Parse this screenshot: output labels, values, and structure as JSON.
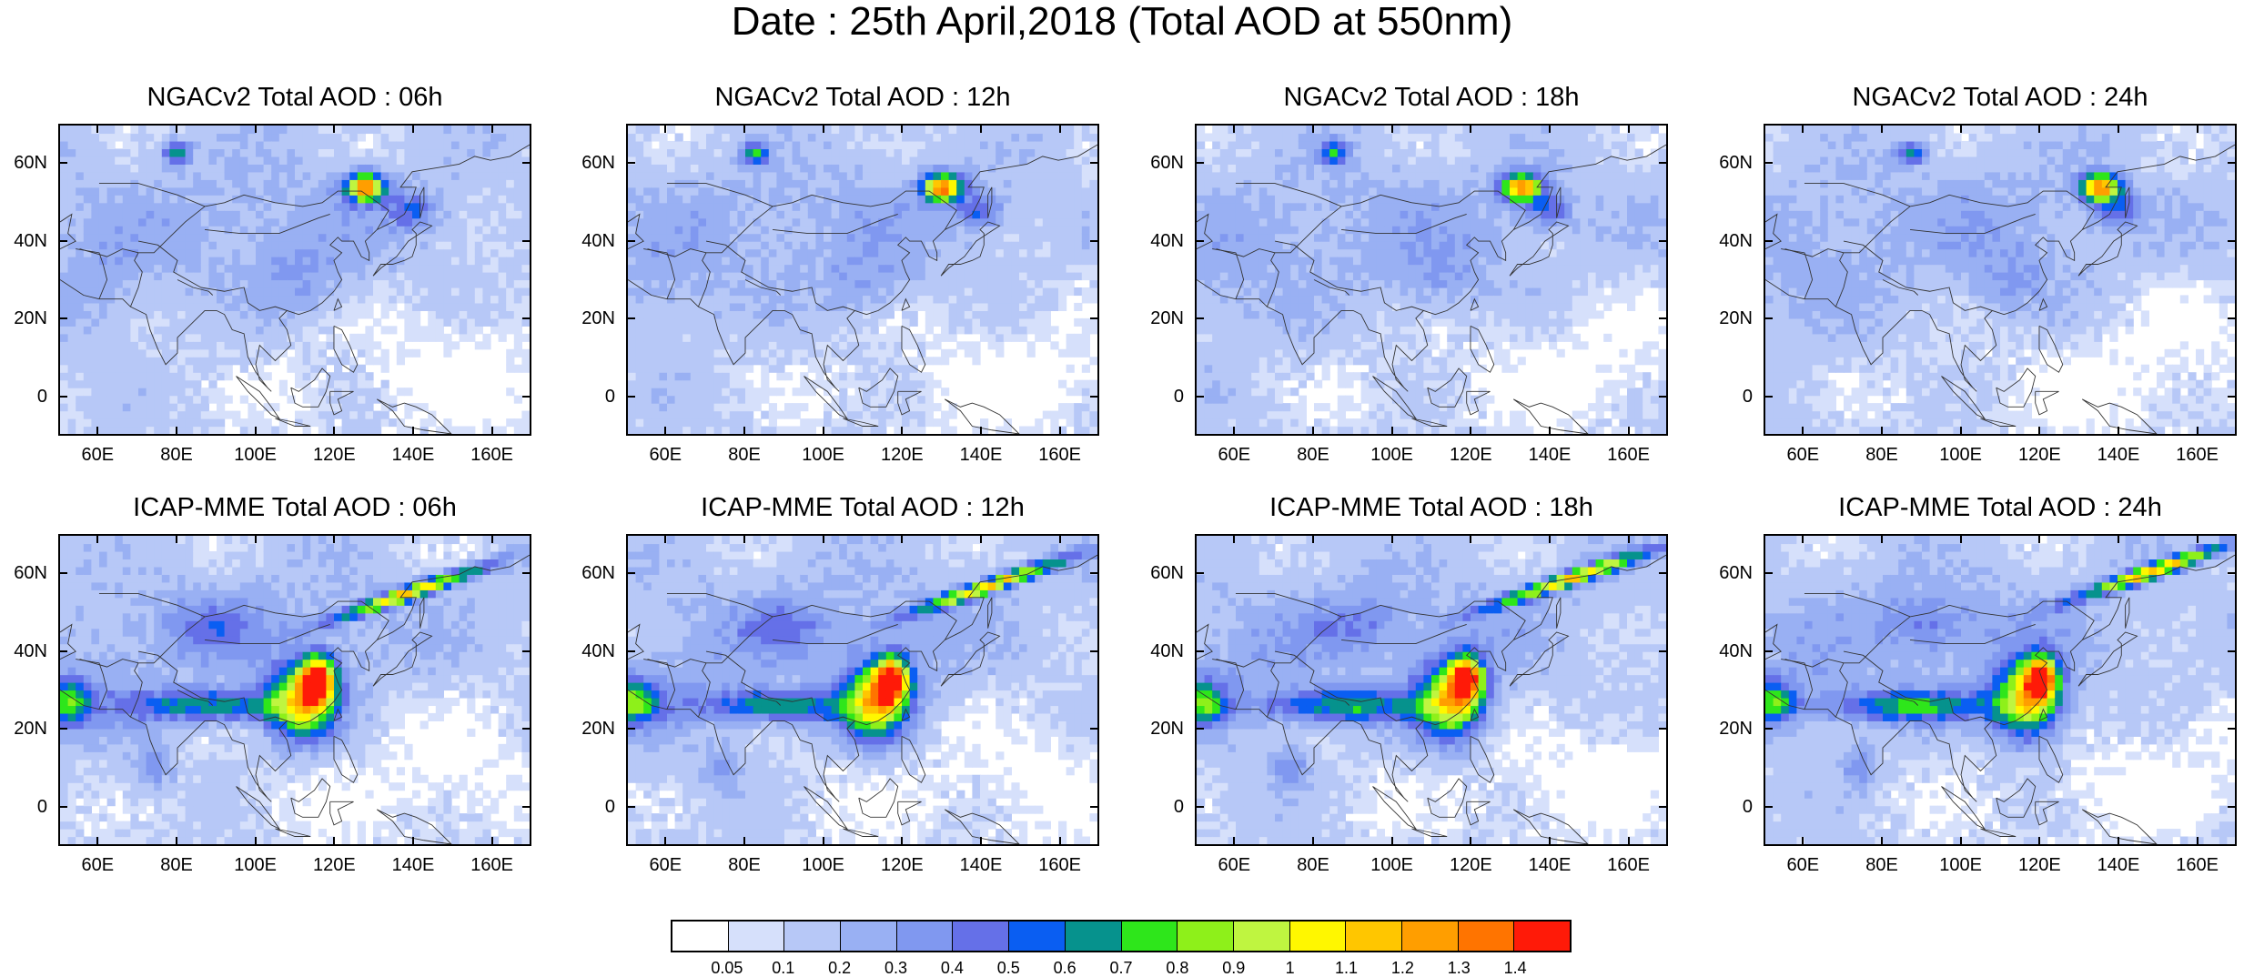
{
  "title": "Date : 25th April,2018 (Total AOD at 550nm)",
  "panels": [
    {
      "title": "NGACv2 Total AOD : 06h",
      "model": "NGACv2",
      "hour": "06h"
    },
    {
      "title": "NGACv2 Total AOD : 12h",
      "model": "NGACv2",
      "hour": "12h"
    },
    {
      "title": "NGACv2 Total AOD : 18h",
      "model": "NGACv2",
      "hour": "18h"
    },
    {
      "title": "NGACv2 Total AOD : 24h",
      "model": "NGACv2",
      "hour": "24h"
    },
    {
      "title": "ICAP-MME Total AOD : 06h",
      "model": "ICAP-MME",
      "hour": "06h"
    },
    {
      "title": "ICAP-MME Total AOD : 12h",
      "model": "ICAP-MME",
      "hour": "12h"
    },
    {
      "title": "ICAP-MME Total AOD : 18h",
      "model": "ICAP-MME",
      "hour": "18h"
    },
    {
      "title": "ICAP-MME Total AOD : 24h",
      "model": "ICAP-MME",
      "hour": "24h"
    }
  ],
  "axes": {
    "lat_ticks": [
      "60N",
      "40N",
      "20N",
      "0"
    ],
    "lon_ticks": [
      "60E",
      "80E",
      "100E",
      "120E",
      "140E",
      "160E"
    ]
  },
  "colorbar": {
    "labels": [
      "0.05",
      "0.1",
      "0.2",
      "0.3",
      "0.4",
      "0.5",
      "0.6",
      "0.7",
      "0.8",
      "0.9",
      "1",
      "1.1",
      "1.2",
      "1.3",
      "1.4"
    ],
    "colors": [
      "#ffffff",
      "#d6e0fb",
      "#b7c8f7",
      "#99b0f3",
      "#8098f0",
      "#6570e8",
      "#0a5ef2",
      "#06928d",
      "#2ee61b",
      "#8ef01a",
      "#bff540",
      "#fff700",
      "#ffc600",
      "#ff9e00",
      "#ff7400",
      "#ff1a08"
    ]
  }
}
